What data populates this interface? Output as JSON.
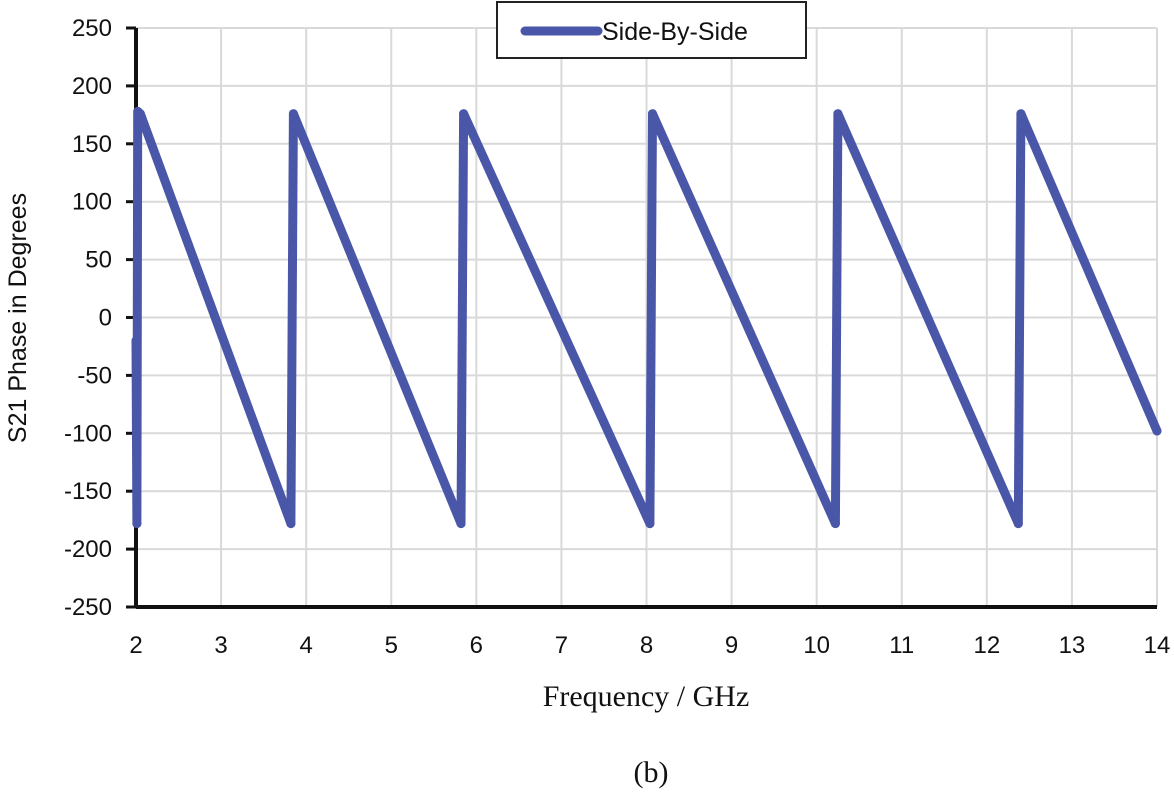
{
  "chart_data": {
    "type": "line",
    "title": "",
    "xlabel": "Frequency / GHz",
    "ylabel": "S21 Phase in Degrees",
    "xlim": [
      2,
      14
    ],
    "ylim": [
      -250,
      250
    ],
    "x_ticks": [
      "2",
      "3",
      "4",
      "5",
      "6",
      "7",
      "8",
      "9",
      "10",
      "11",
      "12",
      "13",
      "14"
    ],
    "y_ticks": [
      "250",
      "200",
      "150",
      "100",
      "50",
      "0",
      "-50",
      "-100",
      "-150",
      "-200",
      "-250"
    ],
    "grid": true,
    "legend": {
      "position": "top-center",
      "entries": [
        "Side-By-Side"
      ]
    },
    "series": [
      {
        "name": "Side-By-Side",
        "color": "#4a57a8",
        "x": [
          2.0,
          2.01,
          2.02,
          2.05,
          3.82,
          3.85,
          5.82,
          5.85,
          8.04,
          8.07,
          10.22,
          10.25,
          12.37,
          12.4,
          14.0
        ],
        "y": [
          -20,
          -178,
          178,
          176,
          -178,
          176,
          -178,
          176,
          -178,
          176,
          -178,
          176,
          -178,
          176,
          -98
        ]
      }
    ]
  },
  "caption": "(b)"
}
